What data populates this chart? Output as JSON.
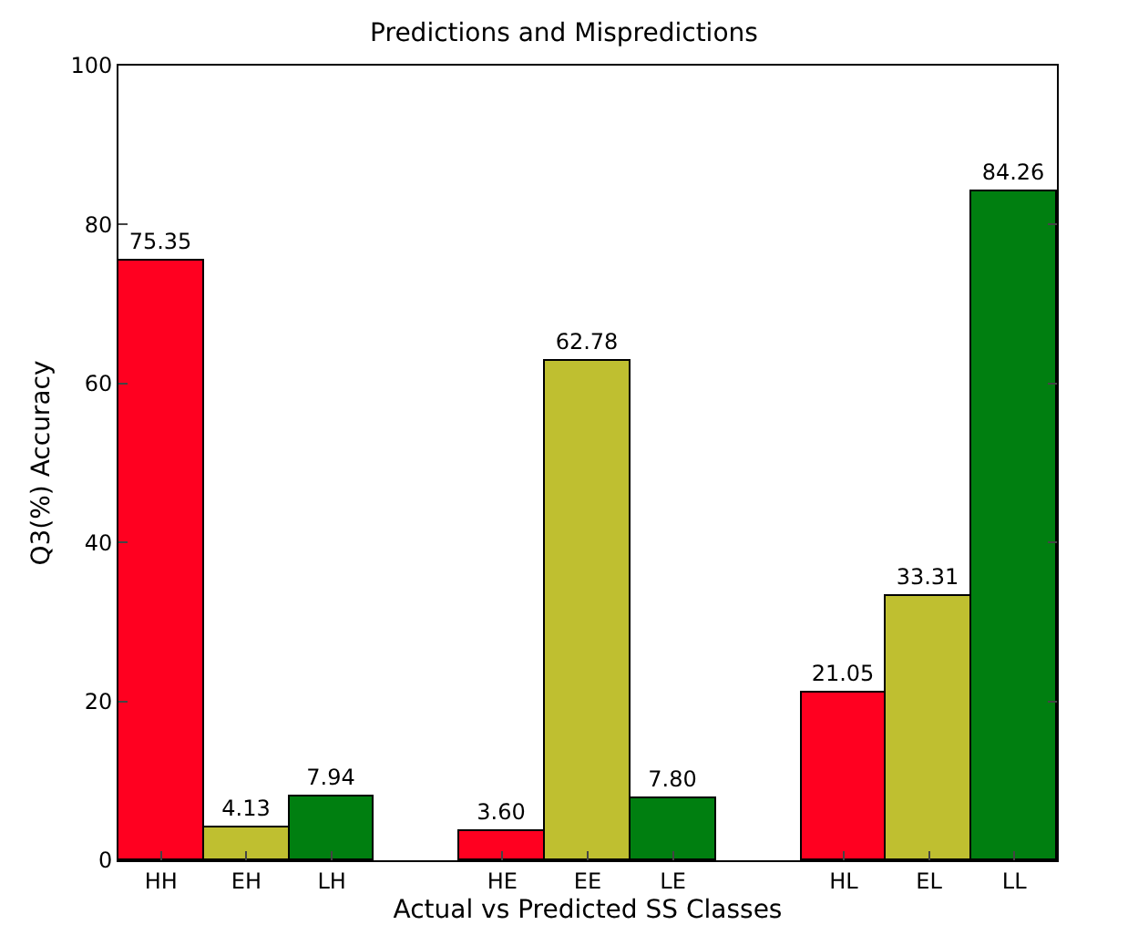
{
  "chart_data": {
    "type": "bar",
    "title": "Predictions and Mispredictions",
    "xlabel": "Actual vs Predicted SS Classes",
    "ylabel": "Q3(%) Accuracy",
    "categories": [
      "HH",
      "EH",
      "LH",
      null,
      "HE",
      "EE",
      "LE",
      null,
      "HL",
      "EL",
      "LL"
    ],
    "values": [
      75.35,
      4.13,
      7.94,
      null,
      3.6,
      62.78,
      7.8,
      null,
      21.05,
      33.31,
      84.26
    ],
    "value_labels": [
      "75.35",
      "4.13",
      "7.94",
      null,
      "3.60",
      "62.78",
      "7.80",
      null,
      "21.05",
      "33.31",
      "84.26"
    ],
    "colors": [
      "#ff0020",
      "#bfbf30",
      "#007f10",
      null,
      "#ff0020",
      "#bfbf30",
      "#007f10",
      null,
      "#ff0020",
      "#bfbf30",
      "#007f10"
    ],
    "ylim": [
      0,
      100
    ],
    "yticks": [
      0,
      20,
      40,
      60,
      80,
      100
    ],
    "grid": false
  }
}
